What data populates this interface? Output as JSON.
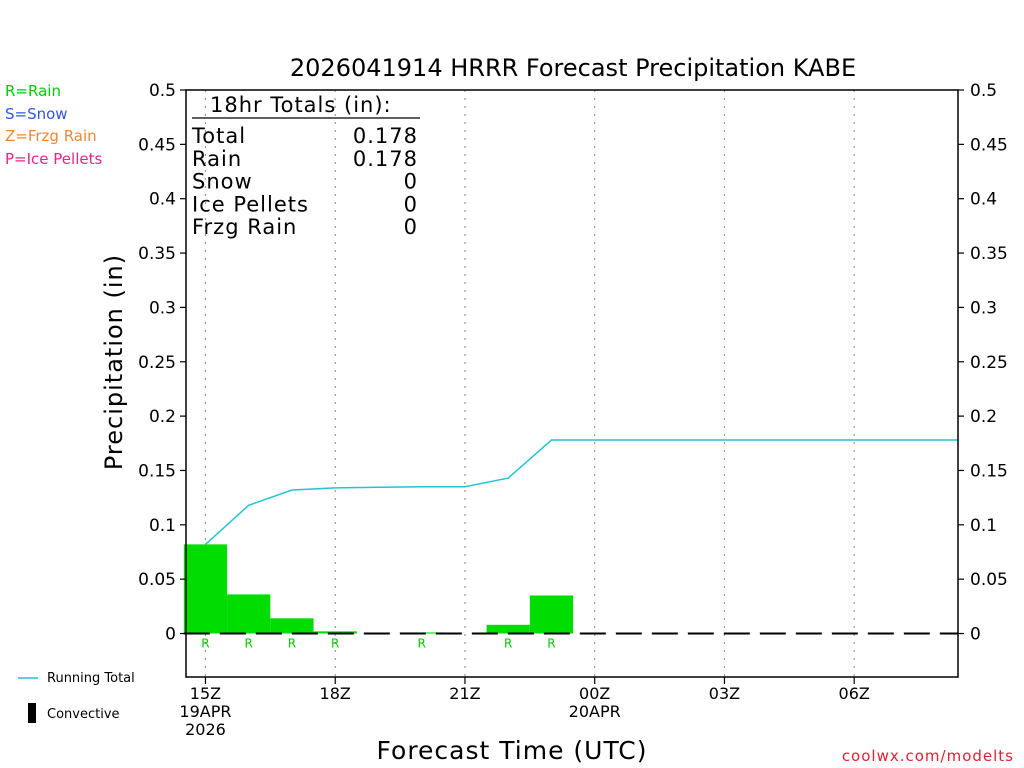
{
  "chart_data": {
    "type": "bar",
    "title": "2026041914 HRRR Forecast Precipitation KABE",
    "xlabel": "Forecast Time (UTC)",
    "ylabel": "Precipitation (in)",
    "ylim": [
      -0.04,
      0.5
    ],
    "y_ticks": [
      "0",
      "0.05",
      "0.1",
      "0.15",
      "0.2",
      "0.25",
      "0.3",
      "0.35",
      "0.4",
      "0.45",
      "0.5"
    ],
    "y_tick_values": [
      0,
      0.05,
      0.1,
      0.15,
      0.2,
      0.25,
      0.3,
      0.35,
      0.4,
      0.45,
      0.5
    ],
    "x_range_hours": [
      14.55,
      32.4
    ],
    "x_ticks": [
      {
        "hour": 15,
        "lines": [
          "15Z",
          "19APR",
          "2026"
        ]
      },
      {
        "hour": 18,
        "lines": [
          "18Z"
        ]
      },
      {
        "hour": 21,
        "lines": [
          "21Z"
        ]
      },
      {
        "hour": 24,
        "lines": [
          "00Z",
          "20APR"
        ]
      },
      {
        "hour": 27,
        "lines": [
          "03Z"
        ]
      },
      {
        "hour": 30,
        "lines": [
          "06Z"
        ]
      }
    ],
    "grid": "dotted vertical at x ticks",
    "bar_series": {
      "name": "Rain",
      "color": "#00dd00",
      "hours": [
        15,
        16,
        17,
        18,
        19,
        20,
        21,
        22,
        23
      ],
      "values": [
        0.082,
        0.036,
        0.014,
        0.002,
        0.0,
        0.001,
        0.0,
        0.008,
        0.035
      ],
      "type_labels": [
        "R",
        "R",
        "R",
        "R",
        "",
        "R",
        "",
        "R",
        "R"
      ]
    },
    "line_series": {
      "name": "Running Total",
      "color": "#22c4d4",
      "x": [
        15,
        16,
        17,
        18,
        19,
        20,
        21,
        22,
        23,
        24,
        25,
        26,
        27,
        28,
        29,
        30,
        31,
        32.4
      ],
      "y": [
        0.082,
        0.118,
        0.132,
        0.134,
        0.1345,
        0.135,
        0.135,
        0.143,
        0.178,
        0.178,
        0.178,
        0.178,
        0.178,
        0.178,
        0.178,
        0.178,
        0.178,
        0.178
      ]
    },
    "convective_color": "#000000"
  },
  "totals_box": {
    "title": "18hr Totals (in):",
    "rows": [
      {
        "label": "Total",
        "value": "0.178"
      },
      {
        "label": "Rain",
        "value": "0.178"
      },
      {
        "label": "Snow",
        "value": "0"
      },
      {
        "label": "Ice Pellets",
        "value": "0"
      },
      {
        "label": "Frzg Rain",
        "value": "0"
      }
    ]
  },
  "type_legend": [
    {
      "text": "R=Rain",
      "color": "#00cc00"
    },
    {
      "text": "S=Snow",
      "color": "#3355dd"
    },
    {
      "text": "Z=Frzg Rain",
      "color": "#ee8833"
    },
    {
      "text": "P=Ice Pellets",
      "color": "#ee2288"
    }
  ],
  "legend": {
    "running_total": "Running Total",
    "convective": "Convective"
  },
  "credit": "coolwx.com/modelts"
}
